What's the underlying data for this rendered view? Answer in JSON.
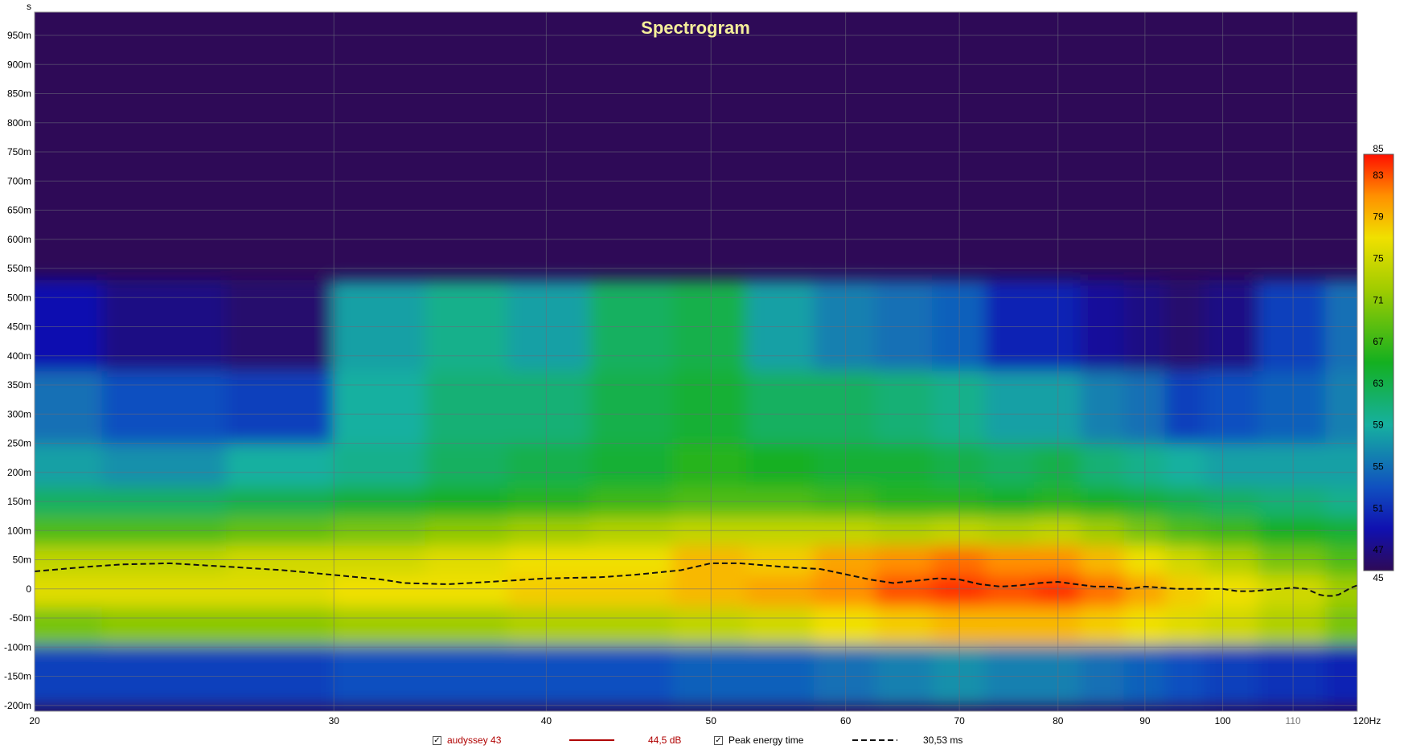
{
  "chart_data": {
    "type": "heatmap",
    "title": "Spectrogram",
    "x_axis": {
      "unit": "Hz",
      "scale": "log",
      "range": [
        20,
        120
      ],
      "ticks": [
        {
          "value": 20,
          "label": "20"
        },
        {
          "value": 30,
          "label": "30"
        },
        {
          "value": 40,
          "label": "40"
        },
        {
          "value": 50,
          "label": "50"
        },
        {
          "value": 60,
          "label": "60"
        },
        {
          "value": 70,
          "label": "70"
        },
        {
          "value": 80,
          "label": "80"
        },
        {
          "value": 90,
          "label": "90"
        },
        {
          "value": 100,
          "label": "100"
        },
        {
          "value": 110,
          "label": "110",
          "dimmed": true
        },
        {
          "value": 120,
          "label": "120Hz"
        }
      ]
    },
    "y_axis": {
      "unit": "s",
      "label": "s",
      "range": [
        -210,
        990
      ],
      "ticks": [
        {
          "value": 950,
          "label": "950m"
        },
        {
          "value": 900,
          "label": "900m"
        },
        {
          "value": 850,
          "label": "850m"
        },
        {
          "value": 800,
          "label": "800m"
        },
        {
          "value": 750,
          "label": "750m"
        },
        {
          "value": 700,
          "label": "700m"
        },
        {
          "value": 650,
          "label": "650m"
        },
        {
          "value": 600,
          "label": "600m"
        },
        {
          "value": 550,
          "label": "550m"
        },
        {
          "value": 500,
          "label": "500m"
        },
        {
          "value": 450,
          "label": "450m"
        },
        {
          "value": 400,
          "label": "400m"
        },
        {
          "value": 350,
          "label": "350m"
        },
        {
          "value": 300,
          "label": "300m"
        },
        {
          "value": 250,
          "label": "250m"
        },
        {
          "value": 200,
          "label": "200m"
        },
        {
          "value": 150,
          "label": "150m"
        },
        {
          "value": 100,
          "label": "100m"
        },
        {
          "value": 50,
          "label": "50m"
        },
        {
          "value": 0,
          "label": "0"
        },
        {
          "value": -50,
          "label": "-50m"
        },
        {
          "value": -100,
          "label": "-100m"
        },
        {
          "value": -150,
          "label": "-150m"
        },
        {
          "value": -200,
          "label": "-200m"
        }
      ]
    },
    "gridlines": true,
    "color_scale": {
      "min": 45,
      "max": 85,
      "unit": "dB",
      "ticks": [
        85,
        83,
        79,
        75,
        71,
        67,
        63,
        59,
        55,
        51,
        47,
        45
      ],
      "stops": [
        {
          "value": 45,
          "color": "#2e0a57"
        },
        {
          "value": 49,
          "color": "#1010b0"
        },
        {
          "value": 53,
          "color": "#1050c0"
        },
        {
          "value": 59,
          "color": "#16b0a0"
        },
        {
          "value": 65,
          "color": "#14b020"
        },
        {
          "value": 72,
          "color": "#a0cc00"
        },
        {
          "value": 77,
          "color": "#f0e000"
        },
        {
          "value": 81,
          "color": "#ff9000"
        },
        {
          "value": 85,
          "color": "#ff1000"
        }
      ]
    },
    "background_color": "#2e0a57",
    "frequencies": [
      20,
      24,
      28,
      32,
      36,
      40,
      45,
      50,
      55,
      60,
      65,
      70,
      75,
      80,
      85,
      90,
      95,
      100,
      110,
      120
    ],
    "decay_ms": [
      -130,
      -60,
      0,
      50,
      100,
      150,
      200,
      300,
      450
    ],
    "levels_db": [
      [
        52,
        70,
        76,
        74,
        68,
        62,
        58,
        55,
        49
      ],
      [
        52,
        71,
        76,
        74,
        68,
        62,
        57,
        53,
        47
      ],
      [
        52,
        71,
        76,
        75,
        69,
        63,
        59,
        52,
        46
      ],
      [
        53,
        72,
        77,
        75,
        70,
        64,
        60,
        59,
        58
      ],
      [
        53,
        72,
        77,
        76,
        71,
        65,
        62,
        61,
        60
      ],
      [
        53,
        73,
        78,
        77,
        72,
        66,
        63,
        61,
        58
      ],
      [
        53,
        73,
        78,
        77,
        73,
        67,
        64,
        63,
        62
      ],
      [
        54,
        74,
        79,
        79,
        74,
        68,
        66,
        64,
        63
      ],
      [
        54,
        75,
        80,
        78,
        74,
        68,
        65,
        62,
        58
      ],
      [
        55,
        77,
        81,
        80,
        74,
        67,
        64,
        62,
        56
      ],
      [
        56,
        78,
        83,
        81,
        73,
        66,
        64,
        61,
        55
      ],
      [
        57,
        79,
        84,
        82,
        74,
        66,
        63,
        60,
        54
      ],
      [
        56,
        79,
        83,
        81,
        73,
        65,
        62,
        58,
        50
      ],
      [
        56,
        79,
        84,
        81,
        74,
        66,
        63,
        58,
        50
      ],
      [
        55,
        78,
        82,
        79,
        72,
        65,
        61,
        56,
        48
      ],
      [
        54,
        77,
        80,
        77,
        70,
        64,
        60,
        55,
        47
      ],
      [
        53,
        76,
        78,
        75,
        68,
        63,
        59,
        52,
        46
      ],
      [
        52,
        75,
        77,
        73,
        67,
        62,
        58,
        53,
        47
      ],
      [
        51,
        73,
        75,
        70,
        65,
        61,
        58,
        54,
        52
      ],
      [
        50,
        70,
        72,
        68,
        64,
        60,
        58,
        56,
        55
      ]
    ],
    "series": [
      {
        "name": "Peak energy time",
        "style": "dashed",
        "color": "#000000",
        "x": [
          20,
          21.5,
          22.5,
          24,
          26,
          28,
          30,
          32,
          33,
          35,
          38,
          40,
          43,
          45,
          48,
          50,
          52,
          55,
          58,
          60,
          62,
          64,
          66,
          68,
          70,
          72,
          74,
          76,
          78,
          80,
          82,
          84,
          86,
          88,
          90,
          92,
          94,
          96,
          98,
          100,
          102,
          104,
          106,
          108,
          110,
          112,
          113,
          114,
          115,
          116,
          117,
          118,
          119,
          120
        ],
        "y": [
          30,
          38,
          42,
          44,
          38,
          32,
          24,
          16,
          10,
          8,
          14,
          18,
          20,
          24,
          32,
          44,
          44,
          38,
          34,
          25,
          16,
          10,
          14,
          18,
          16,
          8,
          4,
          6,
          10,
          12,
          8,
          4,
          4,
          0,
          4,
          2,
          0,
          0,
          0,
          0,
          -4,
          -4,
          -2,
          0,
          2,
          0,
          -5,
          -10,
          -12,
          -12,
          -10,
          -4,
          2,
          6
        ]
      }
    ],
    "legend": {
      "placement": "bottom",
      "items": [
        {
          "checked": true,
          "name": "audyssey 43",
          "line_color": "#b00000",
          "value": "44,5 dB"
        },
        {
          "checked": true,
          "name": "Peak energy time",
          "line_style": "dashed",
          "value": "30,53 ms"
        }
      ]
    }
  }
}
